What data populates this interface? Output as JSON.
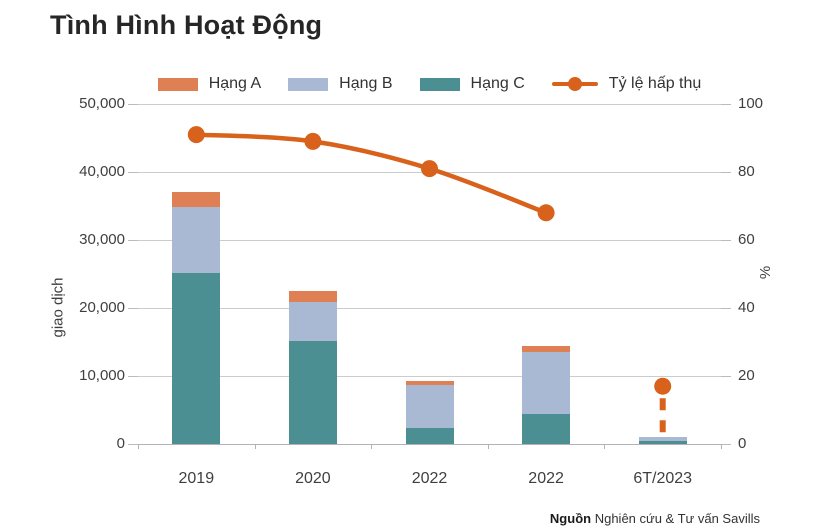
{
  "title": "Tình Hình Hoạt Động",
  "legend": [
    {
      "label": "Hạng A",
      "color": "#DF8054",
      "symbol": "swatch"
    },
    {
      "label": "Hạng B",
      "color": "#A9B8D3",
      "symbol": "swatch"
    },
    {
      "label": "Hạng C",
      "color": "#4C8F93",
      "symbol": "swatch"
    },
    {
      "label": "Tỷ lệ hấp thụ",
      "color": "#D8611C",
      "symbol": "line-dot"
    }
  ],
  "source": {
    "bold": "Nguồn",
    "text": "Nghiên cứu & Tư vấn Savills"
  },
  "chart_data": {
    "type": "bar",
    "subtype": "stacked-bars-with-right-axis-line",
    "title": "Tình Hình Hoạt Động",
    "categories": [
      "2019",
      "2020",
      "2022",
      "2022",
      "6T/2023"
    ],
    "series": [
      {
        "name": "Hạng A",
        "chart": "bar",
        "color": "#DF8054",
        "values": [
          2300,
          1600,
          500,
          800,
          0
        ]
      },
      {
        "name": "Hạng B",
        "chart": "bar",
        "color": "#A9B8D3",
        "values": [
          9700,
          5800,
          6400,
          9200,
          600
        ]
      },
      {
        "name": "Hạng C",
        "chart": "bar",
        "color": "#4C8F93",
        "values": [
          25100,
          15100,
          2300,
          4400,
          500
        ]
      },
      {
        "name": "Tỷ lệ hấp thụ",
        "chart": "line",
        "axis": "right",
        "color": "#D8611C",
        "values": [
          91,
          89,
          81,
          68,
          17
        ],
        "last_point_detached": true
      }
    ],
    "stack_order_bottom_to_top": [
      "Hạng C",
      "Hạng B",
      "Hạng A"
    ],
    "left_axis": {
      "title": "giao dịch",
      "min": 0,
      "max": 50000,
      "ticks": [
        "0",
        "10,000",
        "20,000",
        "30,000",
        "40,000",
        "50,000"
      ]
    },
    "right_axis": {
      "title": "%",
      "min": 0,
      "max": 100,
      "ticks": [
        "0",
        "20",
        "40",
        "60",
        "80",
        "100"
      ]
    },
    "grid": "horizontal",
    "legend_position": "top"
  }
}
